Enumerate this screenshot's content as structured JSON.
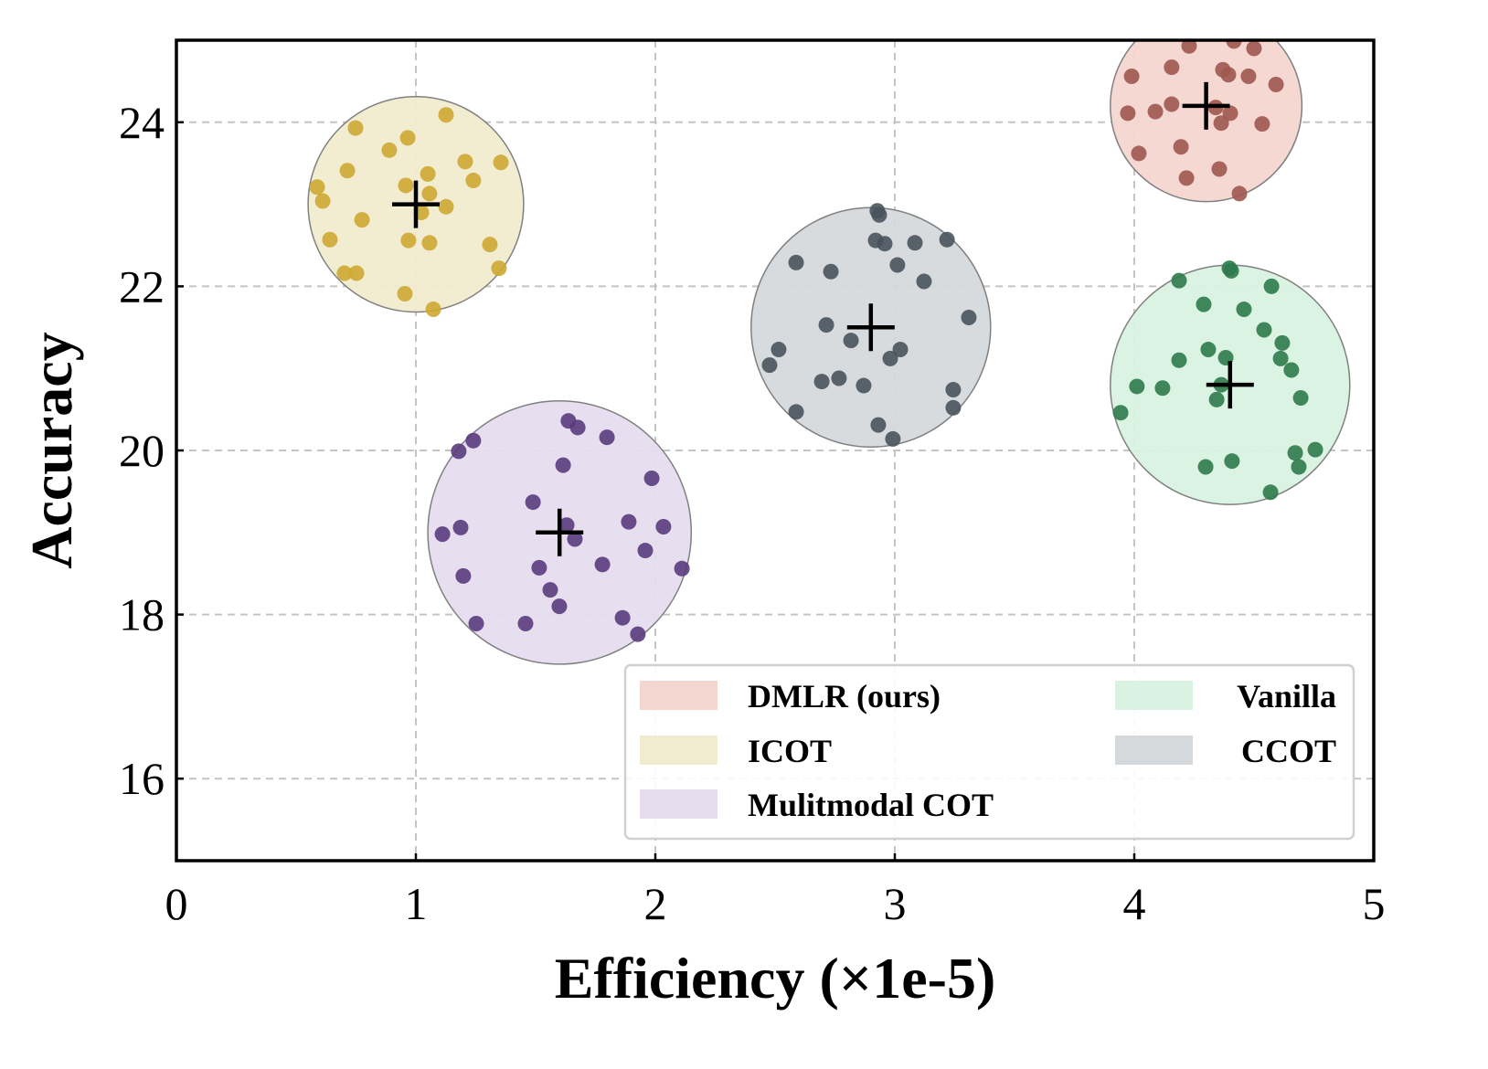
{
  "chart_data": {
    "type": "scatter",
    "xlabel": "Efficiency (×1e-5)",
    "ylabel": "Accuracy",
    "xlim": [
      0,
      5
    ],
    "ylim": [
      15,
      25
    ],
    "xticks": [
      "0",
      "1",
      "2",
      "3",
      "4",
      "5"
    ],
    "yticks": [
      "16",
      "18",
      "20",
      "22",
      "24"
    ],
    "grid": true,
    "legend_position": "bottom-right",
    "series": [
      {
        "name": "DMLR (ours)",
        "point_color": "#9e5850",
        "fill_color": "#f4d6d0",
        "center": [
          4.3,
          24.2
        ],
        "radius": 0.4,
        "points": [
          [
            4.229,
            24.93
          ],
          [
            4.416,
            24.99
          ],
          [
            4.5,
            24.9
          ],
          [
            4.156,
            24.67
          ],
          [
            4.37,
            24.64
          ],
          [
            4.393,
            24.58
          ],
          [
            4.477,
            24.56
          ],
          [
            4.592,
            24.46
          ],
          [
            3.989,
            24.56
          ],
          [
            4.156,
            24.22
          ],
          [
            4.088,
            24.13
          ],
          [
            3.973,
            24.11
          ],
          [
            4.34,
            24.18
          ],
          [
            4.401,
            24.11
          ],
          [
            4.363,
            23.99
          ],
          [
            4.534,
            23.98
          ],
          [
            4.195,
            23.7
          ],
          [
            4.019,
            23.62
          ],
          [
            4.355,
            23.43
          ],
          [
            4.218,
            23.32
          ],
          [
            4.439,
            23.13
          ]
        ]
      },
      {
        "name": "ICOT",
        "point_color": "#cda932",
        "fill_color": "#f1ebcf",
        "center": [
          1.0,
          23.0
        ],
        "radius": 0.45,
        "points": [
          [
            0.748,
            23.93
          ],
          [
            1.126,
            24.09
          ],
          [
            0.588,
            23.21
          ],
          [
            0.611,
            23.04
          ],
          [
            0.714,
            23.41
          ],
          [
            0.889,
            23.66
          ],
          [
            0.966,
            23.81
          ],
          [
            1.05,
            23.37
          ],
          [
            0.958,
            23.23
          ],
          [
            1.057,
            23.13
          ],
          [
            1.126,
            22.97
          ],
          [
            1.023,
            22.9
          ],
          [
            1.206,
            23.52
          ],
          [
            1.24,
            23.29
          ],
          [
            1.355,
            23.51
          ],
          [
            0.775,
            22.81
          ],
          [
            0.641,
            22.57
          ],
          [
            0.969,
            22.56
          ],
          [
            1.057,
            22.53
          ],
          [
            1.309,
            22.51
          ],
          [
            1.347,
            22.22
          ],
          [
            0.702,
            22.16
          ],
          [
            0.752,
            22.16
          ],
          [
            0.954,
            21.91
          ],
          [
            1.073,
            21.72
          ]
        ]
      },
      {
        "name": "Mulitmodal COT",
        "point_color": "#5a3b7d",
        "fill_color": "#e6dcee",
        "center": [
          1.6,
          19.0
        ],
        "radius": 0.55,
        "points": [
          [
            1.637,
            20.36
          ],
          [
            1.676,
            20.28
          ],
          [
            1.798,
            20.16
          ],
          [
            1.24,
            20.12
          ],
          [
            1.179,
            19.99
          ],
          [
            1.615,
            19.82
          ],
          [
            1.985,
            19.66
          ],
          [
            1.489,
            19.37
          ],
          [
            1.111,
            18.98
          ],
          [
            1.187,
            19.06
          ],
          [
            1.63,
            19.09
          ],
          [
            1.664,
            18.92
          ],
          [
            1.889,
            19.13
          ],
          [
            2.034,
            19.07
          ],
          [
            1.958,
            18.78
          ],
          [
            2.111,
            18.56
          ],
          [
            1.515,
            18.57
          ],
          [
            1.779,
            18.61
          ],
          [
            1.198,
            18.47
          ],
          [
            1.561,
            18.3
          ],
          [
            1.599,
            18.1
          ],
          [
            1.252,
            17.89
          ],
          [
            1.458,
            17.89
          ],
          [
            1.863,
            17.96
          ],
          [
            1.927,
            17.76
          ]
        ]
      },
      {
        "name": "Vanilla",
        "point_color": "#2f7a4b",
        "fill_color": "#d9f2e2",
        "center": [
          4.4,
          20.8
        ],
        "radius": 0.5,
        "points": [
          [
            4.397,
            22.22
          ],
          [
            4.405,
            22.19
          ],
          [
            4.187,
            22.07
          ],
          [
            4.573,
            22.0
          ],
          [
            4.29,
            21.78
          ],
          [
            4.458,
            21.72
          ],
          [
            4.542,
            21.47
          ],
          [
            4.618,
            21.31
          ],
          [
            4.309,
            21.23
          ],
          [
            4.382,
            21.13
          ],
          [
            4.187,
            21.1
          ],
          [
            4.611,
            21.12
          ],
          [
            4.656,
            20.98
          ],
          [
            4.011,
            20.78
          ],
          [
            4.118,
            20.76
          ],
          [
            4.363,
            20.8
          ],
          [
            4.344,
            20.62
          ],
          [
            4.695,
            20.64
          ],
          [
            3.943,
            20.46
          ],
          [
            4.672,
            19.97
          ],
          [
            4.756,
            20.01
          ],
          [
            4.687,
            19.8
          ],
          [
            4.408,
            19.87
          ],
          [
            4.298,
            19.8
          ],
          [
            4.569,
            19.49
          ]
        ]
      },
      {
        "name": "CCOT",
        "point_color": "#4a535c",
        "fill_color": "#d5d9dc",
        "center": [
          2.9,
          21.5
        ],
        "radius": 0.5,
        "points": [
          [
            2.927,
            22.92
          ],
          [
            2.935,
            22.87
          ],
          [
            2.588,
            22.29
          ],
          [
            2.733,
            22.18
          ],
          [
            2.92,
            22.56
          ],
          [
            2.958,
            22.52
          ],
          [
            3.084,
            22.53
          ],
          [
            3.218,
            22.57
          ],
          [
            3.011,
            22.26
          ],
          [
            3.122,
            22.06
          ],
          [
            3.309,
            21.62
          ],
          [
            2.714,
            21.53
          ],
          [
            2.817,
            21.34
          ],
          [
            2.515,
            21.23
          ],
          [
            2.477,
            21.04
          ],
          [
            2.981,
            21.12
          ],
          [
            3.023,
            21.23
          ],
          [
            2.695,
            20.84
          ],
          [
            2.767,
            20.88
          ],
          [
            2.87,
            20.79
          ],
          [
            3.244,
            20.74
          ],
          [
            3.244,
            20.52
          ],
          [
            2.588,
            20.47
          ],
          [
            2.931,
            20.31
          ],
          [
            2.992,
            20.14
          ]
        ]
      }
    ]
  }
}
